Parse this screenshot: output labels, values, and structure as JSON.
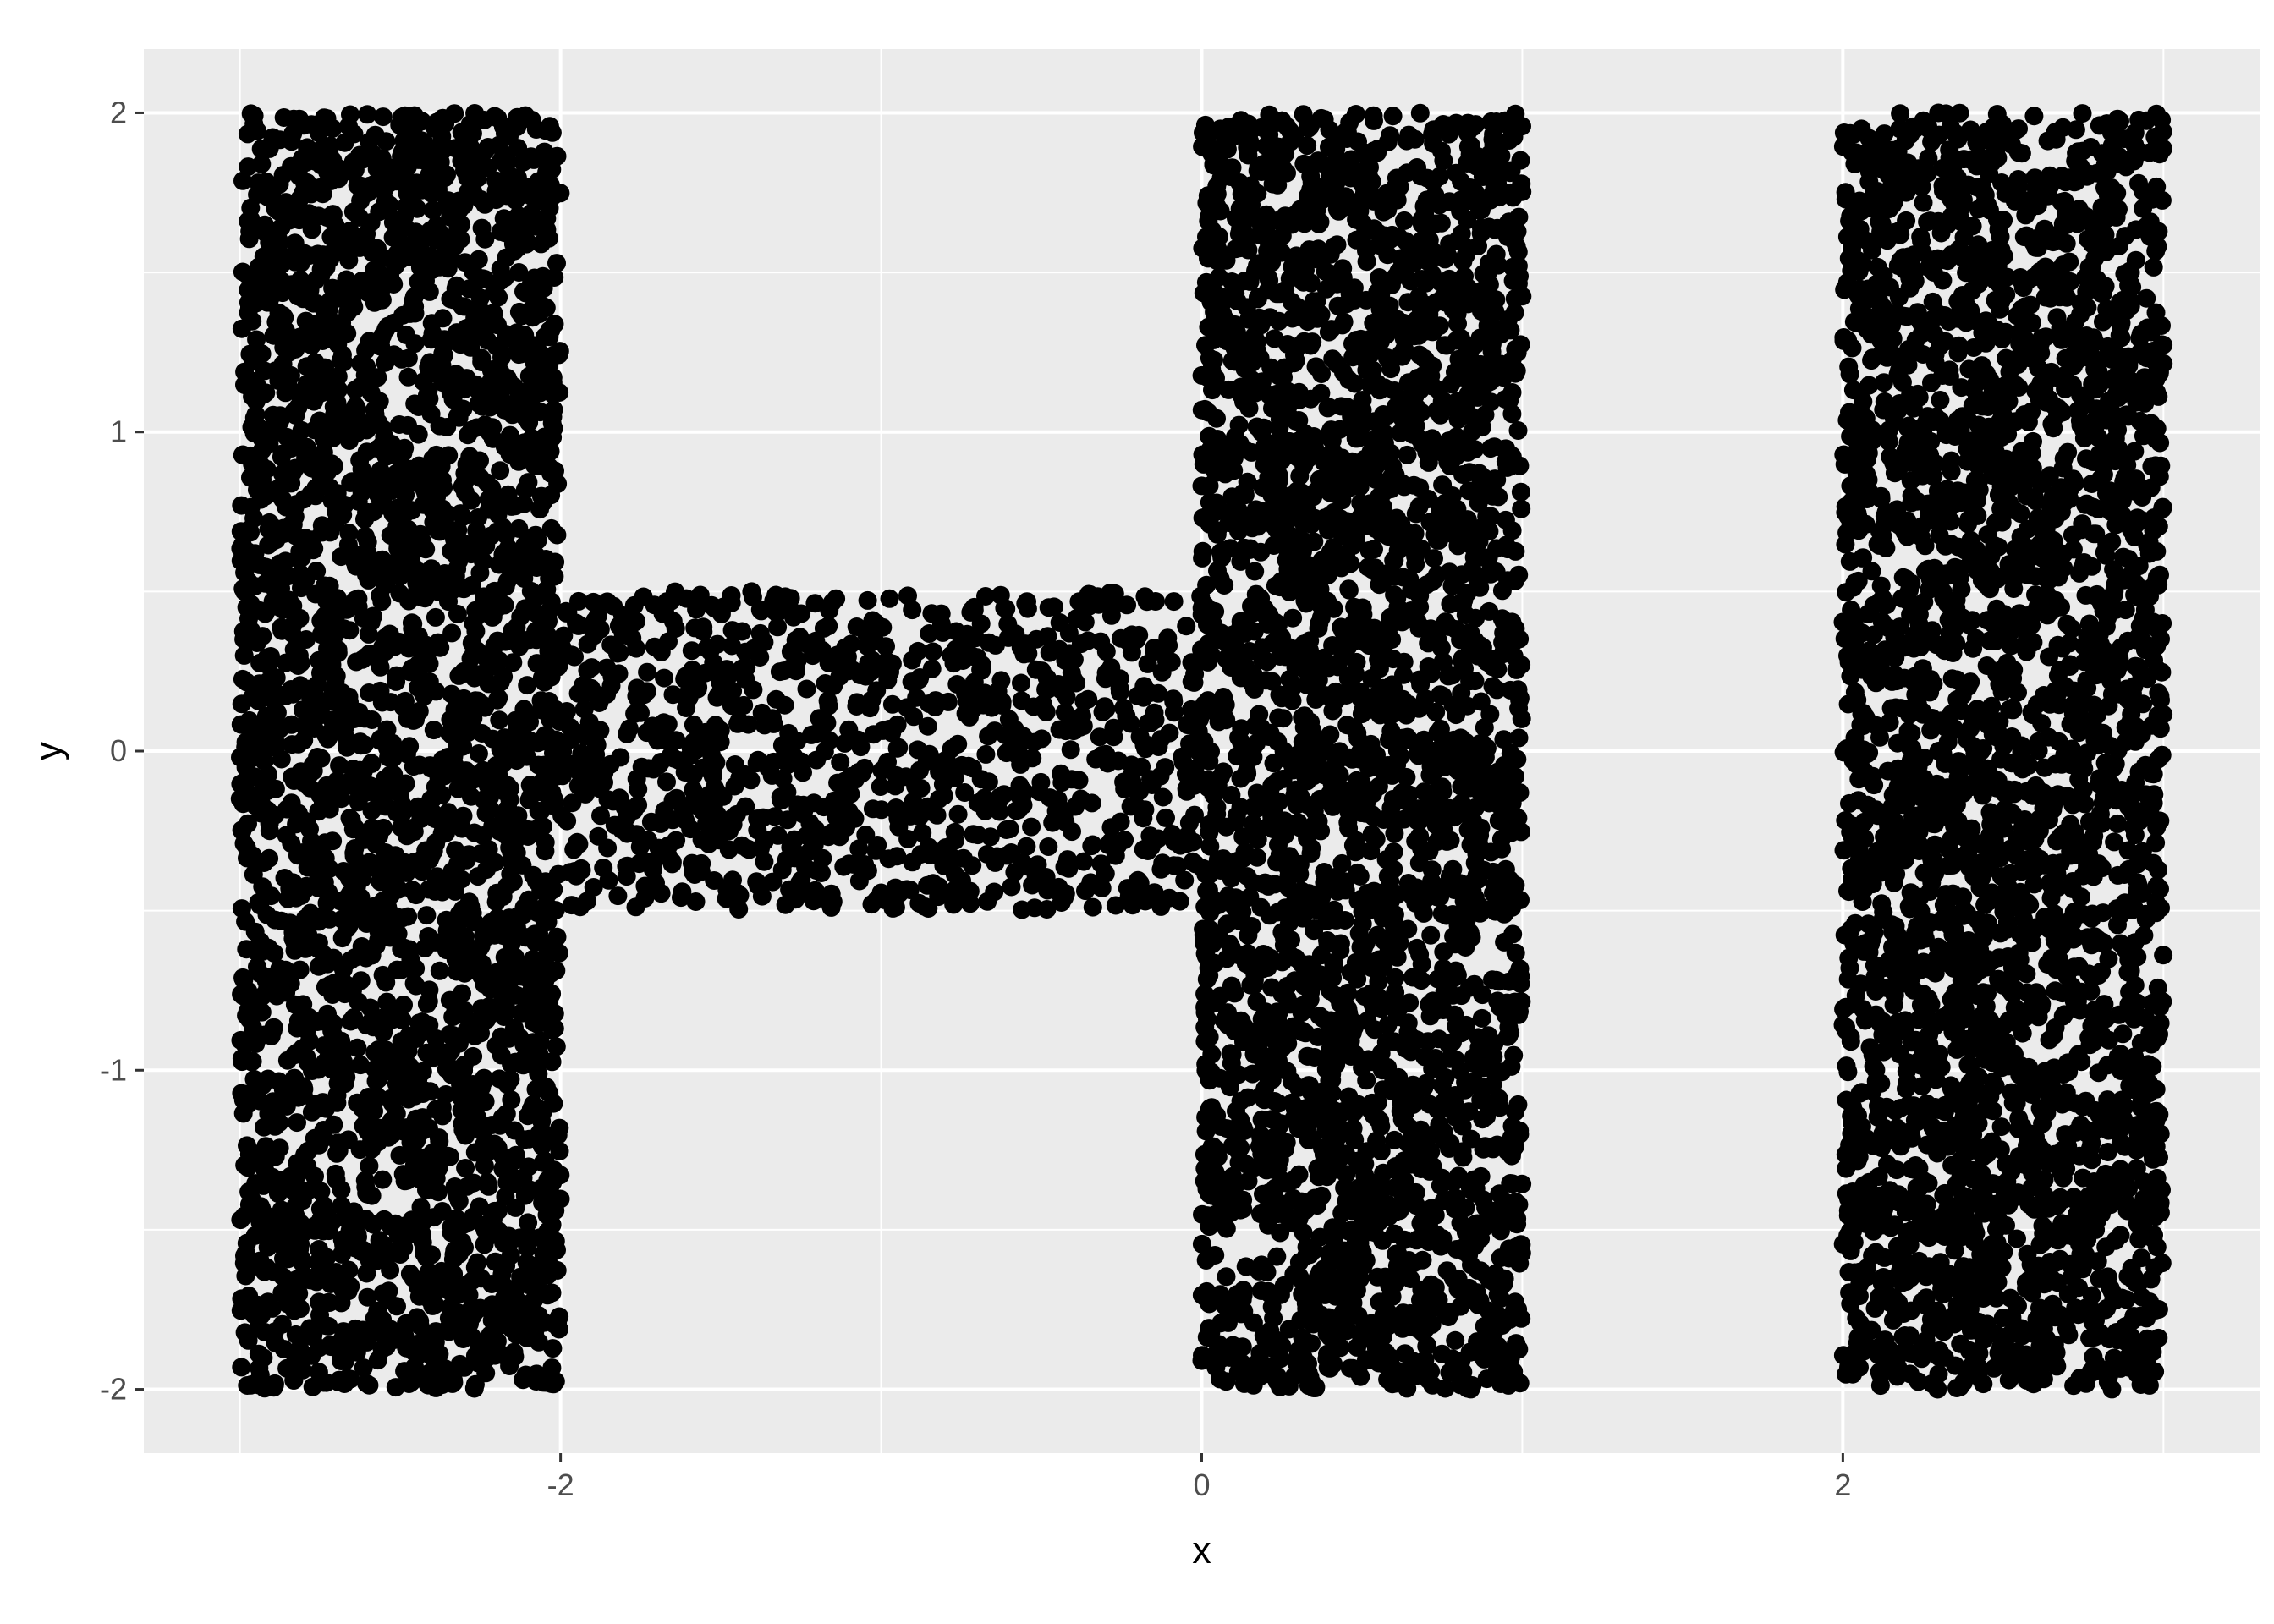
{
  "chart_data": {
    "type": "scatter",
    "title": "",
    "xlabel": "x",
    "ylabel": "y",
    "xlim": [
      -3.3,
      3.3
    ],
    "ylim": [
      -2.2,
      2.2
    ],
    "x_ticks": [
      -2,
      0,
      2
    ],
    "x_tick_labels": [
      "-2",
      "0",
      "2"
    ],
    "y_ticks": [
      -2,
      -1,
      0,
      1,
      2
    ],
    "y_tick_labels": [
      "-2",
      "-1",
      "0",
      "1",
      "2"
    ],
    "grid": true,
    "legend": "none",
    "colors": {
      "panel": "#ebebeb",
      "grid": "#ffffff",
      "point": "#000000"
    },
    "regions": [
      {
        "name": "H left bar",
        "x": [
          -3,
          -2
        ],
        "y": [
          -2,
          2
        ],
        "points": 3000
      },
      {
        "name": "H crossbar",
        "x": [
          -2,
          0
        ],
        "y": [
          -0.5,
          0.5
        ],
        "points": 1000
      },
      {
        "name": "H right bar",
        "x": [
          0,
          1
        ],
        "y": [
          -2,
          2
        ],
        "points": 3000
      },
      {
        "name": "I bar",
        "x": [
          2,
          3
        ],
        "y": [
          -2,
          2
        ],
        "points": 3000
      }
    ]
  }
}
